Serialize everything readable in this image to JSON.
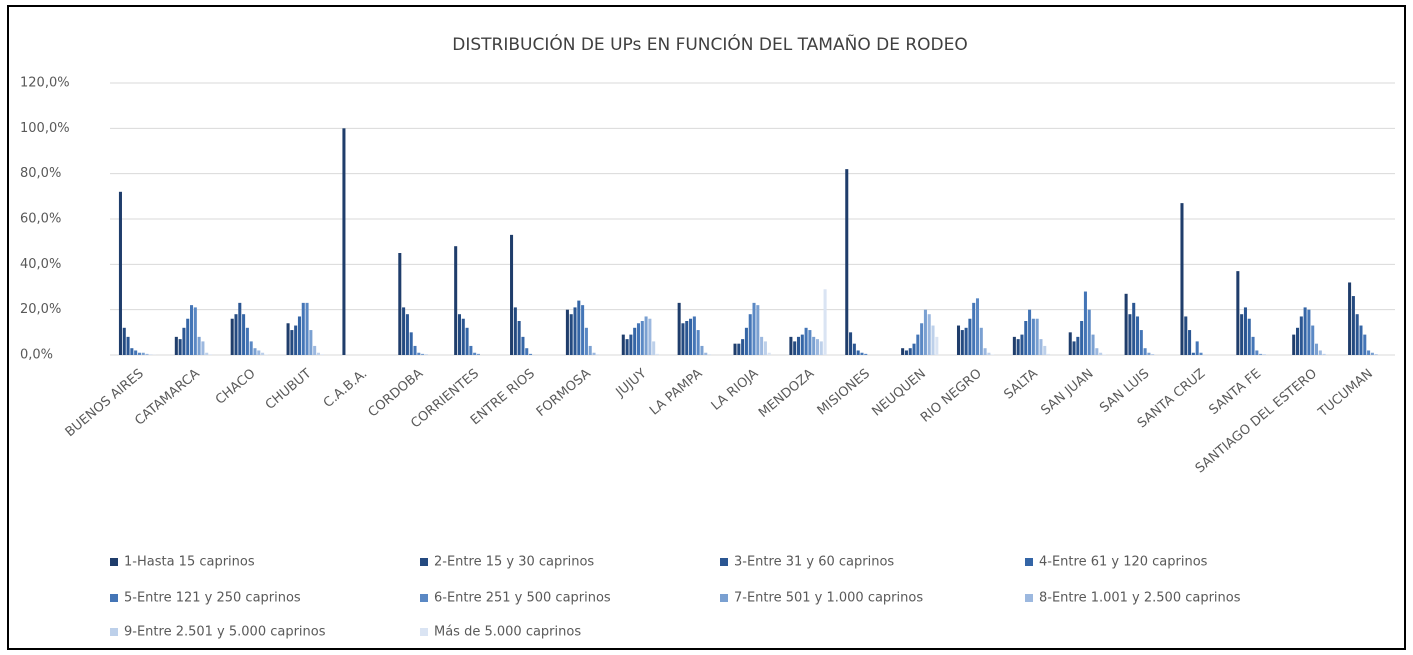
{
  "chart_data": {
    "type": "bar",
    "title": "DISTRIBUCIÓN DE UPs EN FUNCIÓN DEL TAMAÑO DE RODEO",
    "categories": [
      "BUENOS AIRES",
      "CATAMARCA",
      "CHACO",
      "CHUBUT",
      "C.A.B.A.",
      "CORDOBA",
      "CORRIENTES",
      "ENTRE RIOS",
      "FORMOSA",
      "JUJUY",
      "LA PAMPA",
      "LA RIOJA",
      "MENDOZA",
      "MISIONES",
      "NEUQUEN",
      "RIO NEGRO",
      "SALTA",
      "SAN JUAN",
      "SAN LUIS",
      "SANTA CRUZ",
      "SANTA FE",
      "SANTIAGO DEL ESTERO",
      "TUCUMAN"
    ],
    "series": [
      {
        "name": "1-Hasta 15 caprinos",
        "color": "#1f3d6b",
        "values": [
          72,
          8,
          16,
          14,
          100,
          45,
          48,
          53,
          20,
          9,
          23,
          5,
          8,
          82,
          3,
          13,
          8,
          10,
          27,
          67,
          37,
          9,
          32
        ]
      },
      {
        "name": "2-Entre 15 y 30 caprinos",
        "color": "#244a80",
        "values": [
          12,
          7,
          18,
          11,
          0,
          21,
          18,
          21,
          18,
          7,
          14,
          5,
          6,
          10,
          2,
          11,
          7,
          6,
          18,
          17,
          18,
          12,
          26
        ]
      },
      {
        "name": "3-Entre 31 y 60 caprinos",
        "color": "#2b5692",
        "values": [
          8,
          12,
          23,
          13,
          0,
          18,
          16,
          15,
          21,
          9,
          15,
          7,
          8,
          5,
          3,
          12,
          9,
          8,
          23,
          11,
          21,
          17,
          18
        ]
      },
      {
        "name": "4-Entre 61 y 120 caprinos",
        "color": "#3465a6",
        "values": [
          3,
          16,
          18,
          17,
          0,
          10,
          12,
          8,
          24,
          12,
          16,
          12,
          9,
          2,
          5,
          16,
          15,
          15,
          17,
          1,
          16,
          21,
          13
        ]
      },
      {
        "name": "5-Entre 121 y 250 caprinos",
        "color": "#4475b6",
        "values": [
          2,
          22,
          12,
          23,
          0,
          4,
          4,
          3,
          22,
          14,
          17,
          18,
          12,
          1,
          9,
          23,
          20,
          28,
          11,
          6,
          8,
          20,
          9
        ]
      },
      {
        "name": "6-Entre 251 y 500 caprinos",
        "color": "#5a88c4",
        "values": [
          1,
          21,
          6,
          23,
          0,
          1,
          1,
          0.5,
          12,
          15,
          11,
          23,
          11,
          0.5,
          14,
          25,
          16,
          20,
          3,
          1,
          2,
          13,
          2
        ]
      },
      {
        "name": "7-Entre 501 y 1.000 caprinos",
        "color": "#7aa0d1",
        "values": [
          1,
          8,
          3,
          11,
          0,
          0.5,
          0.5,
          0,
          4,
          17,
          4,
          22,
          8,
          0,
          20,
          12,
          16,
          9,
          1,
          0,
          0.5,
          5,
          1
        ]
      },
      {
        "name": "8-Entre 1.001 y 2.500 caprinos",
        "color": "#9cb8df",
        "values": [
          0.5,
          6,
          2,
          4,
          0,
          0.2,
          0,
          0,
          1,
          16,
          1,
          8,
          7,
          0,
          18,
          3,
          7,
          3,
          0.3,
          0,
          0.2,
          2,
          0.3
        ]
      },
      {
        "name": "9-Entre 2.501 y 5.000 caprinos",
        "color": "#bdd0ea",
        "values": [
          0.2,
          1,
          1,
          1,
          0,
          0,
          0,
          0,
          0.2,
          6,
          0.2,
          6,
          6,
          0,
          13,
          1,
          4,
          1,
          0,
          0,
          0,
          0.5,
          0
        ]
      },
      {
        "name": "Más de 5.000 caprinos",
        "color": "#dae4f3",
        "values": [
          0.1,
          0.3,
          0.2,
          0.3,
          0,
          0,
          0,
          0,
          0,
          0.5,
          0,
          1,
          29,
          0,
          8,
          0.2,
          0.5,
          0.2,
          0,
          0,
          0,
          0,
          0
        ]
      }
    ],
    "ylim": [
      0,
      120
    ],
    "yticks": [
      {
        "value": 0,
        "label": "0,0%"
      },
      {
        "value": 20,
        "label": "20,0%"
      },
      {
        "value": 40,
        "label": "40,0%"
      },
      {
        "value": 60,
        "label": "60,0%"
      },
      {
        "value": 80,
        "label": "80,0%"
      },
      {
        "value": 100,
        "label": "100,0%"
      },
      {
        "value": 120,
        "label": "120,0%"
      }
    ],
    "grid": true,
    "legend": "bottom"
  }
}
